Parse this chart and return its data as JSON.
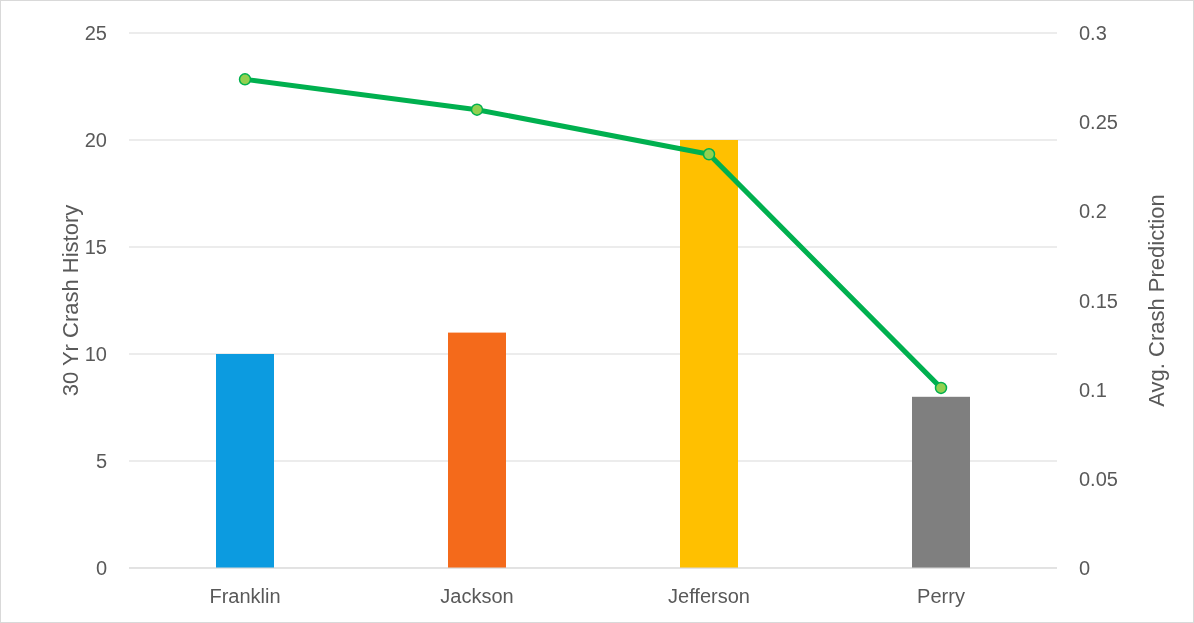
{
  "chart_data": {
    "type": "bar",
    "ylabel": "30 Yr Crash History",
    "y2label": "Avg. Crash Prediction",
    "categories": [
      "Franklin",
      "Jackson",
      "Jefferson",
      "Perry"
    ],
    "series": [
      {
        "colors": [
          "#0c9be0",
          "#f46a1b",
          "#ffc000",
          "#7f7f7f"
        ],
        "values": [
          10,
          11,
          20,
          8
        ]
      },
      {
        "type": "line",
        "axis": "y2",
        "color": "#00b04f",
        "values": [
          0.274,
          0.257,
          0.232,
          0.101
        ],
        "marker": "circle"
      }
    ],
    "ylim": [
      0,
      25
    ],
    "yticks": [
      0,
      5,
      10,
      15,
      20,
      25
    ],
    "y2lim": [
      0,
      0.3
    ],
    "y2ticks": [
      0,
      0.05,
      0.1,
      0.15,
      0.2,
      0.25,
      0.3
    ],
    "grid": "y"
  }
}
